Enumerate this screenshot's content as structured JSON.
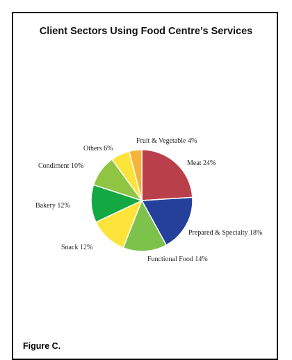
{
  "figure_caption": "Figure C.",
  "chart_data": {
    "type": "pie",
    "title": "Client Sectors Using Food Centre’s Services",
    "slices": [
      {
        "label": "Meat 24%",
        "value": 24,
        "color": "#b9404a"
      },
      {
        "label": "Prepared & Specialty 18%",
        "value": 18,
        "color": "#25409a"
      },
      {
        "label": "Functional Food 14%",
        "value": 14,
        "color": "#7dc24a"
      },
      {
        "label": "Snack 12%",
        "value": 12,
        "color": "#fde33a"
      },
      {
        "label": "Bakery 12%",
        "value": 12,
        "color": "#14a843"
      },
      {
        "label": "Condiment 10%",
        "value": 10,
        "color": "#8fc542"
      },
      {
        "label": "Others 6%",
        "value": 6,
        "color": "#fde33a"
      },
      {
        "label": "Fruit & Vegetable 4%",
        "value": 4,
        "color": "#f6b33a"
      }
    ]
  }
}
